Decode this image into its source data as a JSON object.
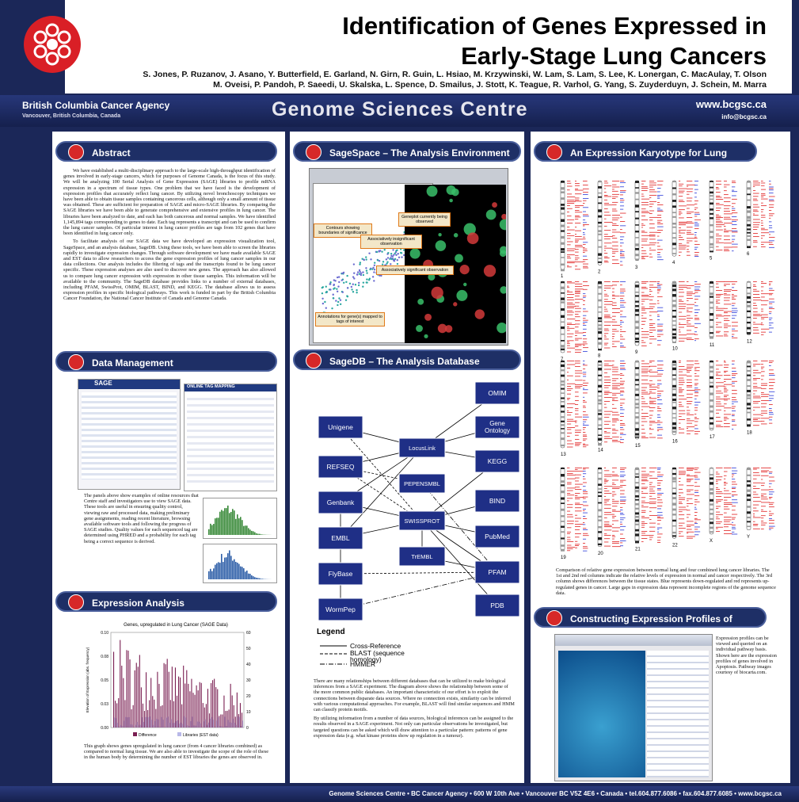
{
  "header": {
    "title_line1": "Identification of Genes Expressed in",
    "title_line2": "Early-Stage Lung Cancers",
    "authors_line1": "S. Jones, P. Ruzanov, J. Asano, Y. Butterfield, E. Garland, N. Girn, R. Guin, L. Hsiao, M. Krzywinski, W. Lam, S. Lam, S. Lee, K. Lonergan, C. MacAulay, T. Olson",
    "authors_line2": "M. Oveisi, P. Pandoh, P. Saeedi, U. Skalska, L. Spence, D. Smailus, J. Stott, K. Teague, R. Varhol, G. Yang, S. Zuyderduyn, J. Schein, M. Marra"
  },
  "banner": {
    "agency": "British Columbia Cancer Agency",
    "location": "Vancouver, British Columbia, Canada",
    "centre": "Genome Sciences Centre",
    "url": "www.bcgsc.ca",
    "email": "info@bcgsc.ca"
  },
  "abstract": {
    "heading": "Abstract",
    "paragraph1": "We have established a multi-disciplinary approach to the large-scale high-throughput identification of genes involved in early-stage cancers, which for purposes of Genome Canada, is the focus of this study. We will be analyzing 100 Serial Analysis of Gene Expression (SAGE) libraries to profile mRNA expression in a spectrum of tissue types. One problem that we have faced is the development of expression profiles that accurately reflect lung cancer. By utilizing novel bronchoscopy techniques we have been able to obtain tissue samples containing cancerous cells, although only a small amount of tissue was obtained. These are sufficient for preparation of SAGE and micro-SAGE libraries. By comparing the SAGE libraries we have been able to generate comprehensive and extensive profiles in lung cancer. The libraries have been analyzed to date, and each has both cancerous and normal samples. We have identified 1,145,894 tags corresponding to genes to date. Each tag represents a transcript and can be used to confirm the lung cancer samples. Of particular interest in lung cancer profiles are tags from 102 genes that have been identified in lung cancer only.",
    "paragraph2": "To facilitate analysis of our SAGE data we have developed an expression visualization tool, SageSpace, and an analysis database, SageDB. Using these tools, we have been able to screen the libraries rapidly to investigate expression changes. Through software development we have made available SAGE and EST data to allow researchers to access the gene expression profiles of lung cancer samples in our data collections. Our analysis includes the filtering of tags and the transcripts found to be lung cancer specific. These expression analyses are also used to discover new genes. The approach has also allowed us to compare lung cancer expression with expression in other tissue samples. This information will be available to the community. The SageDB database provides links to a number of external databases, including PFAM, SwissProt, OMIM, BLAST, BIND, and KEGG. The database allows us to assess expression profiles in specific biological pathways. This work is funded in part by the British Columbia Cancer Foundation, the National Cancer Institute of Canada and Genome Canada."
  },
  "data_management": {
    "heading": "Data Management",
    "screenshot_title": "SAGE",
    "screenshot_panel": "ONLINE TAG MAPPING",
    "text": "The panels above show examples of online resources that Centre staff and investigators use to view SAGE data. These tools are useful in ensuring quality control, viewing raw and processed data, making preliminary gene assignments, reading recent literature, browsing available software tools and following the progress of SAGE studies. Quality values for each sequenced tag are determined using PHRED and a probability for each tag being a correct sequence is derived."
  },
  "expression_analysis": {
    "heading": "Expression Analysis",
    "chart_title": "Genes, upregulated in Lung Cancer (SAGE Data)",
    "y_label": "Elevation of Expression (abs. frequency)",
    "left_ticks": [
      "0.10",
      "0.08",
      "0.05",
      "0.03",
      "0.00"
    ],
    "right_ticks": [
      "60",
      "50",
      "40",
      "30",
      "20",
      "10",
      "0"
    ],
    "legend": [
      "Difference",
      "Libraries (EST data)"
    ],
    "text": "This graph shows genes upregulated in lung cancer (from 4 cancer libraries combined) as compared to normal lung tissue. We are also able to investigate the scope of the role of these in the human body by determining the number of EST libraries the genes are observed in."
  },
  "sagespace": {
    "heading": "SageSpace – The Analysis Environment",
    "callouts": [
      "Contours showing boundaries of significance",
      "Geneplot currently being observed",
      "Associatively insignificant observation",
      "Associatively significant observation",
      "Annotations for gene(s) mapped to tags of interest"
    ]
  },
  "sagedb": {
    "heading": "SageDB – The Analysis Database",
    "nodes": [
      "Unigene",
      "REFSEQ",
      "Genbank",
      "EMBL",
      "FlyBase",
      "WormPep",
      "LocusLink",
      "PEPENSMBL",
      "SWISSPROT",
      "TrEMBL",
      "OMIM",
      "Gene Ontology",
      "KEGG",
      "BIND",
      "PubMed",
      "PFAM",
      "PDB"
    ],
    "legend_title": "Legend",
    "legend": [
      "Cross-Reference",
      "BLAST (sequence homology)",
      "HMMER"
    ],
    "text1": "There are many relationships between different databases that can be utilized to make biological inferences from a SAGE experiment. The diagram above shows the relationship between some of the more common public databases. An important characteristic of our effort is to exploit the connections between disparate data sources. Where no connection exists, similarity can be inferred with various computational approaches. For example, BLAST will find similar sequences and HMM can classify protein motifs.",
    "text2": "By utilizing information from a number of data sources, biological inferences can be assigned to the results observed in a SAGE experiment. Not only can particular observations be investigated, but targeted questions can be asked which will draw attention to a particular pattern: patterns of gene expression data (e.g. what kinase proteins show up regulation in a tumour)."
  },
  "karyotype": {
    "heading": "An Expression Karyotype for Lung Cancer",
    "chromosomes": [
      "1",
      "2",
      "3",
      "4",
      "5",
      "6",
      "7",
      "8",
      "9",
      "10",
      "11",
      "12",
      "13",
      "14",
      "15",
      "16",
      "17",
      "18",
      "19",
      "20",
      "21",
      "22",
      "X",
      "Y"
    ],
    "text": "Comparison of relative gene expression between normal lung and four combined lung cancer libraries. The 1st and 2nd red columns indicate the relative levels of expression in normal and cancer respectively. The 3rd column shows differences between the tissue states. Blue represents down-regulated and red represents up-regulated genes in cancer. Large gaps in expression data represent incomplete regions of the genome sequence data."
  },
  "pathways": {
    "heading": "Constructing Expression Profiles of Genetic Pathways",
    "text": "Expression profiles can be viewed and queried on an individual pathway basis. Shown here are the expression profiles of genes involved in Apoptosis. Pathway images courtesy of biocarta.com."
  },
  "footer": "Genome Sciences Centre • BC Cancer Agency • 600 W 10th Ave • Vancouver BC V5Z 4E6 • Canada • tel.604.877.6086 • fax.604.877.6085 • www.bcgsc.ca"
}
